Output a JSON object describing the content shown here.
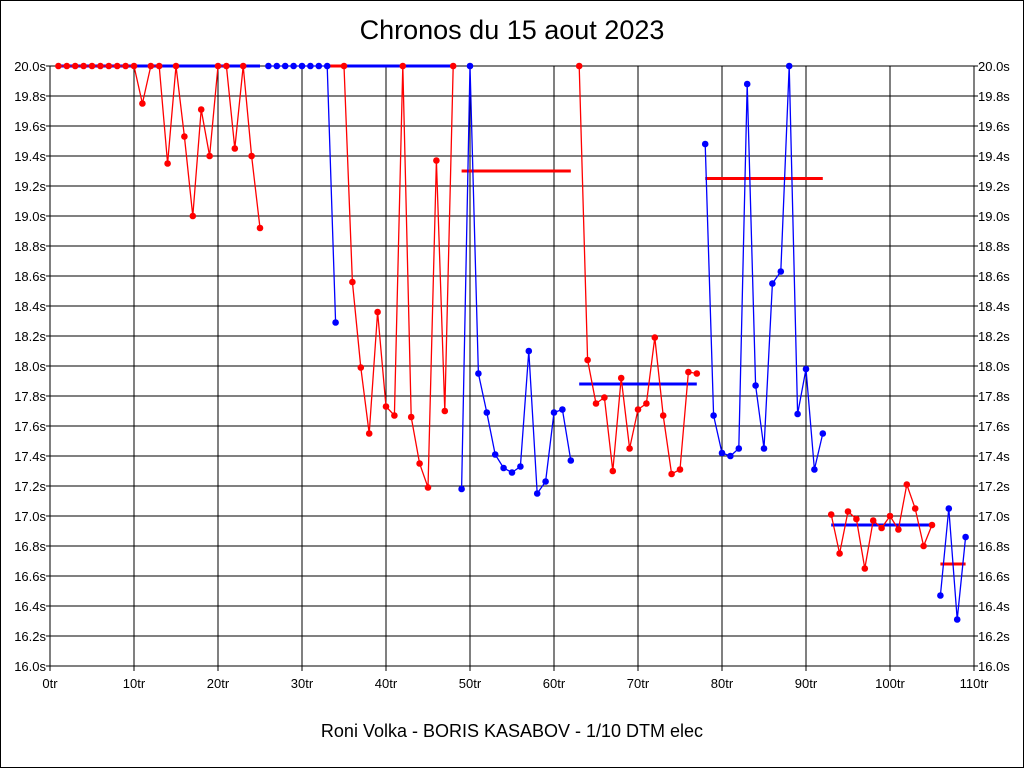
{
  "chart_data": {
    "type": "line",
    "title": "Chronos du 15 aout 2023",
    "footer": "Roni Volka - BORIS KASABOV - 1/10 DTM elec",
    "xlabel": "",
    "ylabel": "",
    "xlim": [
      0,
      110
    ],
    "ylim": [
      16.0,
      20.0
    ],
    "x_ticks": [
      "0tr",
      "10tr",
      "20tr",
      "30tr",
      "40tr",
      "50tr",
      "60tr",
      "70tr",
      "80tr",
      "90tr",
      "100tr",
      "110tr"
    ],
    "y_ticks": [
      "16.0s",
      "16.2s",
      "16.4s",
      "16.6s",
      "16.8s",
      "17.0s",
      "17.2s",
      "17.4s",
      "17.6s",
      "17.8s",
      "18.0s",
      "18.2s",
      "18.4s",
      "18.6s",
      "18.8s",
      "19.0s",
      "19.2s",
      "19.4s",
      "19.6s",
      "19.8s",
      "20.0s"
    ],
    "grid": true,
    "colors": {
      "red": "#ff0000",
      "blue": "#0000ff"
    },
    "stints": [
      {
        "color": "red",
        "start_lap": 1,
        "values": [
          20.0,
          20.0,
          20.0,
          20.0,
          20.0,
          20.0,
          20.0,
          20.0,
          20.0,
          20.0,
          19.75,
          20.0,
          20.0,
          19.35,
          20.0,
          19.53,
          19.0,
          19.71,
          19.4,
          20.0,
          20.0,
          19.45,
          20.0,
          19.4,
          18.92
        ]
      },
      {
        "color": "blue",
        "start_lap": 26,
        "values": [
          20.0,
          20.0,
          20.0,
          20.0,
          20.0,
          20.0,
          20.0,
          20.0,
          18.29
        ]
      },
      {
        "color": "red",
        "start_lap": 35,
        "values": [
          20.0,
          18.56,
          17.99,
          17.55,
          18.36,
          17.73,
          17.67,
          20.0,
          17.66,
          17.35,
          17.19,
          19.37,
          17.7,
          20.0
        ]
      },
      {
        "color": "blue",
        "start_lap": 49,
        "values": [
          17.18,
          20.0,
          17.95,
          17.69,
          17.41,
          17.32,
          17.29,
          17.33,
          18.1,
          17.15,
          17.23,
          17.69,
          17.71,
          17.37
        ]
      },
      {
        "color": "red",
        "start_lap": 63,
        "values": [
          20.0,
          18.04,
          17.75,
          17.79,
          17.3,
          17.92,
          17.45,
          17.71,
          17.75,
          18.19,
          17.67,
          17.28,
          17.31,
          17.96,
          17.95
        ]
      },
      {
        "color": "blue",
        "start_lap": 78,
        "values": [
          19.48,
          17.67,
          17.42,
          17.4,
          17.45,
          19.88,
          17.87,
          17.45,
          18.55,
          18.63,
          20.0,
          17.68,
          17.98,
          17.31,
          17.55
        ]
      },
      {
        "color": "red",
        "start_lap": 93,
        "values": [
          17.01,
          16.75,
          17.03,
          16.98,
          16.65,
          16.97,
          16.92,
          17.0,
          16.91,
          17.21,
          17.05,
          16.8,
          16.94
        ]
      },
      {
        "color": "blue",
        "start_lap": 106,
        "values": [
          16.47,
          17.05,
          16.31,
          16.86
        ]
      }
    ],
    "averages": [
      {
        "color": "blue",
        "from": 1,
        "to": 25,
        "value": 20.0
      },
      {
        "color": "red",
        "from": 33,
        "to": 35,
        "value": 20.0
      },
      {
        "color": "blue",
        "from": 35,
        "to": 48,
        "value": 20.0
      },
      {
        "color": "red",
        "from": 49,
        "to": 62,
        "value": 19.3
      },
      {
        "color": "blue",
        "from": 63,
        "to": 77,
        "value": 17.88
      },
      {
        "color": "red",
        "from": 78,
        "to": 92,
        "value": 19.25
      },
      {
        "color": "blue",
        "from": 93,
        "to": 105,
        "value": 16.94
      },
      {
        "color": "red",
        "from": 106,
        "to": 109,
        "value": 16.68
      }
    ]
  }
}
